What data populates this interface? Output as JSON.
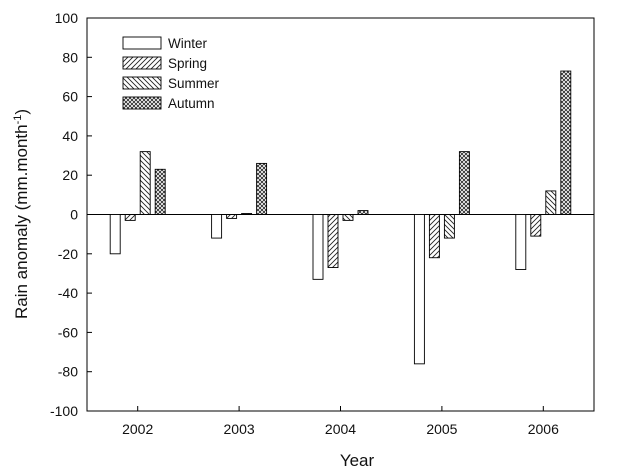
{
  "chart_data": {
    "type": "bar",
    "categories": [
      "2002",
      "2003",
      "2004",
      "2005",
      "2006"
    ],
    "series": [
      {
        "name": "Winter",
        "values": [
          -20,
          -12,
          -33,
          -76,
          -28
        ],
        "pattern": "none"
      },
      {
        "name": "Spring",
        "values": [
          -3,
          -2,
          -27,
          -22,
          -11
        ],
        "pattern": "forward-diagonal"
      },
      {
        "name": "Summer",
        "values": [
          32,
          0.5,
          -3,
          -12,
          12
        ],
        "pattern": "backward-diagonal"
      },
      {
        "name": "Autumn",
        "values": [
          23,
          26,
          2,
          32,
          73
        ],
        "pattern": "crosshatch"
      }
    ],
    "xlabel": "Year",
    "ylabel": "Rain anomaly (mm.month",
    "ylabel_superscript": "-1",
    "ylabel_suffix": ")",
    "ylim": [
      -100,
      100
    ],
    "yticks": [
      "-100",
      "-80",
      "-60",
      "-40",
      "-20",
      "0",
      "20",
      "40",
      "60",
      "80",
      "100"
    ],
    "zero_line": true,
    "grid": false,
    "legend_position": "top-left"
  }
}
